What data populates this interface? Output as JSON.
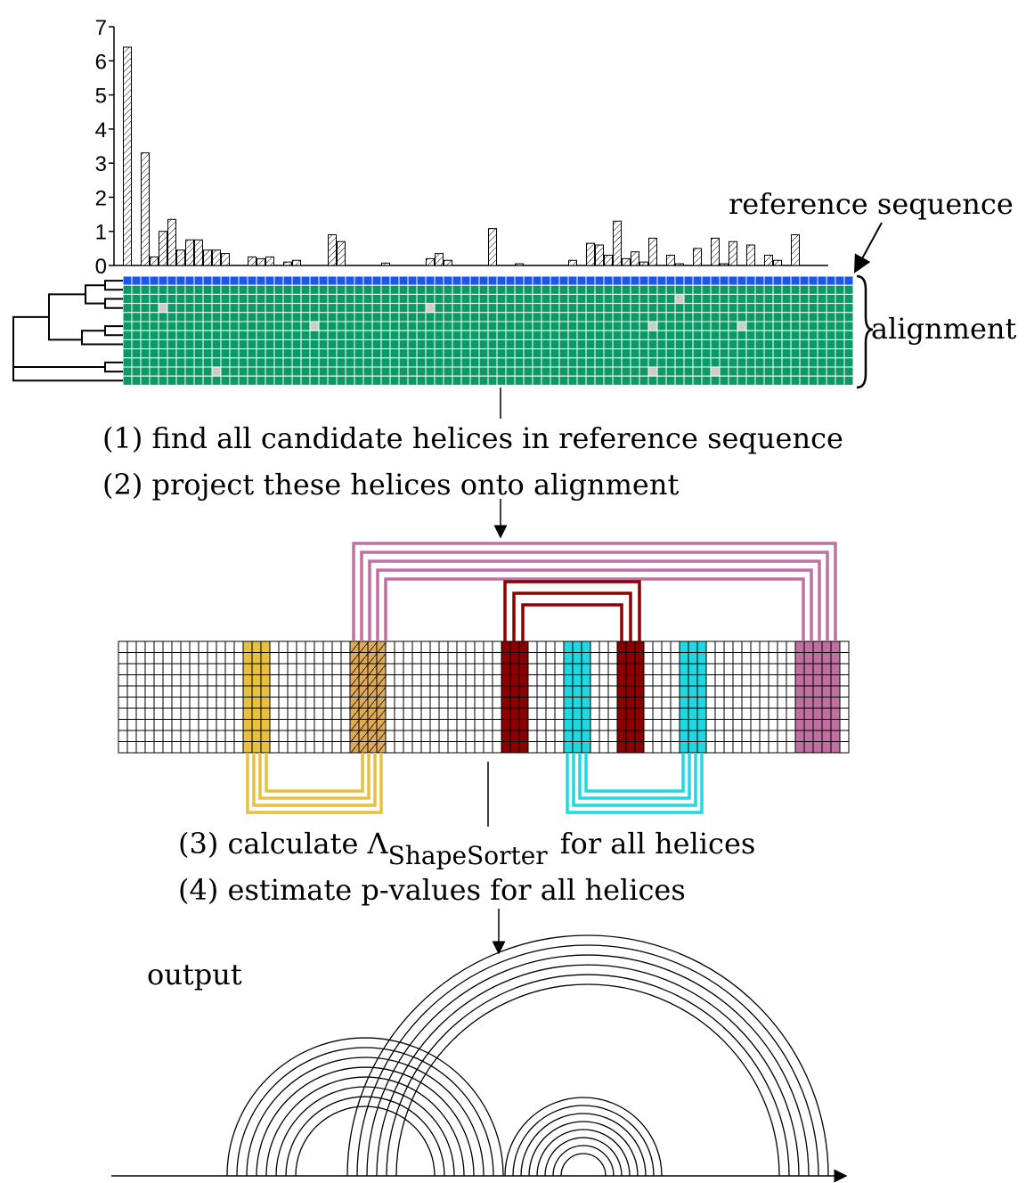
{
  "chart_data": {
    "type": "bar",
    "values": [
      6.4,
      0,
      3.3,
      0.25,
      1.0,
      1.35,
      0.45,
      0.75,
      0.75,
      0.45,
      0.45,
      0.35,
      0,
      0,
      0.25,
      0.2,
      0.25,
      0,
      0.1,
      0.15,
      0,
      0,
      0,
      0.9,
      0.7,
      0,
      0,
      0,
      0,
      0.07,
      0,
      0,
      0,
      0,
      0.2,
      0.35,
      0.15,
      0,
      0,
      0,
      0,
      1.08,
      0,
      0,
      0.05,
      0,
      0,
      0,
      0,
      0,
      0.15,
      0,
      0.65,
      0.6,
      0.3,
      1.3,
      0.2,
      0.4,
      0.1,
      0.8,
      0,
      0.3,
      0.05,
      0,
      0.5,
      0,
      0.8,
      0.05,
      0.7,
      0,
      0.6,
      0,
      0.3,
      0.15,
      0,
      0.9,
      0,
      0,
      0
    ],
    "ylim": [
      0,
      7
    ],
    "yticks": [
      0,
      1,
      2,
      3,
      4,
      5,
      6,
      7
    ]
  },
  "labels": {
    "reference": "reference sequence",
    "alignment": "alignment",
    "step1": "(1) find all candidate helices in reference sequence",
    "step2": "(2) project these helices onto alignment",
    "step3": {
      "main": "(3) calculate Λ",
      "subscript": "ShapeSorter",
      "rest": "for all helices"
    },
    "step4": "(4) estimate p-values for all helices",
    "output": "output"
  }
}
